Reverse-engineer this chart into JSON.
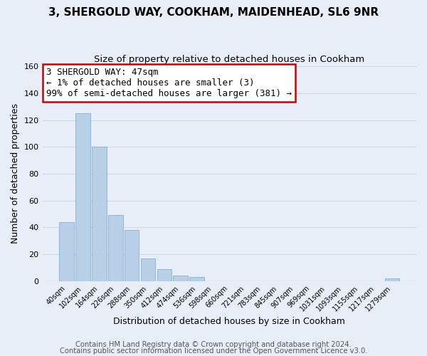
{
  "title": "3, SHERGOLD WAY, COOKHAM, MAIDENHEAD, SL6 9NR",
  "subtitle": "Size of property relative to detached houses in Cookham",
  "xlabel": "Distribution of detached houses by size in Cookham",
  "ylabel": "Number of detached properties",
  "bar_labels": [
    "40sqm",
    "102sqm",
    "164sqm",
    "226sqm",
    "288sqm",
    "350sqm",
    "412sqm",
    "474sqm",
    "536sqm",
    "598sqm",
    "660sqm",
    "721sqm",
    "783sqm",
    "845sqm",
    "907sqm",
    "969sqm",
    "1031sqm",
    "1093sqm",
    "1155sqm",
    "1217sqm",
    "1279sqm"
  ],
  "bar_values": [
    44,
    125,
    100,
    49,
    38,
    17,
    9,
    4,
    3,
    0,
    0,
    0,
    0,
    0,
    0,
    0,
    0,
    0,
    0,
    0,
    2
  ],
  "bar_color": "#b8cfe8",
  "bar_edge_color": "#7aaad0",
  "annotation_box_text": "3 SHERGOLD WAY: 47sqm\n← 1% of detached houses are smaller (3)\n99% of semi-detached houses are larger (381) →",
  "annotation_box_color": "#ffffff",
  "annotation_box_edge_color": "#cc0000",
  "ylim": [
    0,
    160
  ],
  "yticks": [
    0,
    20,
    40,
    60,
    80,
    100,
    120,
    140,
    160
  ],
  "grid_color": "#c8d8e8",
  "bg_color": "#e8eef8",
  "footer_line1": "Contains HM Land Registry data © Crown copyright and database right 2024.",
  "footer_line2": "Contains public sector information licensed under the Open Government Licence v3.0.",
  "title_fontsize": 11,
  "subtitle_fontsize": 9.5,
  "annotation_fontsize": 9,
  "footer_fontsize": 7.2,
  "xlabel_fontsize": 9,
  "ylabel_fontsize": 9
}
